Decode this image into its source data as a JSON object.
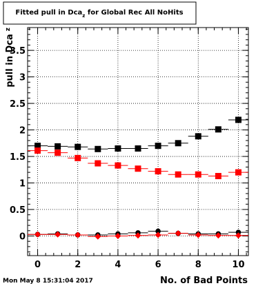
{
  "chart_data": {
    "type": "scatter",
    "title": "Fitted pull in Dca",
    "title_sub": "z",
    "title_rest": " for Global Rec All NoHits",
    "ylabel": "pull in Dca",
    "ylabel_sub": "z",
    "xlabel": "No. of Bad Points",
    "xlim": [
      -0.5,
      10.5
    ],
    "ylim": [
      -0.37,
      3.93
    ],
    "x_ticks": [
      "0",
      "2",
      "4",
      "6",
      "8",
      "10"
    ],
    "y_ticks": [
      "0",
      "0.5",
      "1",
      "1.5",
      "2",
      "2.5",
      "3",
      "3.5"
    ],
    "grid": true,
    "series": [
      {
        "color": "#000000",
        "marker": "square",
        "x": [
          0,
          1,
          2,
          3,
          4,
          5,
          6,
          7,
          8,
          9,
          10
        ],
        "y": [
          1.7,
          1.69,
          1.68,
          1.64,
          1.65,
          1.65,
          1.7,
          1.75,
          1.88,
          2.01,
          2.19
        ]
      },
      {
        "color": "#ff0000",
        "marker": "square",
        "x": [
          0,
          1,
          2,
          3,
          4,
          5,
          6,
          7,
          8,
          9,
          10
        ],
        "y": [
          1.61,
          1.57,
          1.47,
          1.37,
          1.33,
          1.27,
          1.22,
          1.16,
          1.16,
          1.13,
          1.2
        ]
      },
      {
        "color": "#000000",
        "marker": "circle",
        "x": [
          0,
          1,
          2,
          3,
          4,
          5,
          6,
          7,
          8,
          9,
          10
        ],
        "y": [
          0.03,
          0.04,
          0.02,
          0.02,
          0.04,
          0.06,
          0.09,
          0.05,
          0.04,
          0.04,
          0.07
        ]
      },
      {
        "color": "#ff0000",
        "marker": "diamond",
        "x": [
          0,
          1,
          2,
          3,
          4,
          5,
          6,
          7,
          8,
          9,
          10
        ],
        "y": [
          0.03,
          0.03,
          0.02,
          -0.01,
          0.0,
          0.01,
          0.02,
          0.05,
          0.02,
          0.01,
          0.01
        ]
      }
    ]
  },
  "footer": {
    "timestamp": "Mon May  8 15:31:04 2017"
  }
}
